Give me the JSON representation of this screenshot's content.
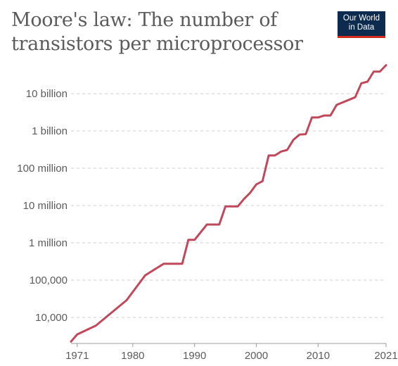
{
  "logo": {
    "line1": "Our World",
    "line2": "in Data"
  },
  "chart_data": {
    "type": "line",
    "title": "Moore's law: The number of transistors per microprocessor",
    "xlabel": "",
    "ylabel": "",
    "y_scale": "log",
    "xlim": [
      1970,
      2021
    ],
    "ylim": [
      2000,
      65000000000
    ],
    "grid": "horizontal-dashed",
    "x_ticks": [
      {
        "value": 1971,
        "label": "1971"
      },
      {
        "value": 1980,
        "label": "1980"
      },
      {
        "value": 1990,
        "label": "1990"
      },
      {
        "value": 2000,
        "label": "2000"
      },
      {
        "value": 2010,
        "label": "2010"
      },
      {
        "value": 2021,
        "label": "2021"
      }
    ],
    "y_ticks": [
      {
        "value": 10000,
        "label": "10,000"
      },
      {
        "value": 100000,
        "label": "100,000"
      },
      {
        "value": 1000000,
        "label": "1 million"
      },
      {
        "value": 10000000,
        "label": "10 million"
      },
      {
        "value": 100000000,
        "label": "100 million"
      },
      {
        "value": 1000000000,
        "label": "1 billion"
      },
      {
        "value": 10000000000,
        "label": "10 billion"
      }
    ],
    "series": [
      {
        "color": "#c0485a",
        "points": [
          [
            1970,
            2250
          ],
          [
            1971,
            3500
          ],
          [
            1974,
            6000
          ],
          [
            1979,
            29000
          ],
          [
            1982,
            134000
          ],
          [
            1985,
            275000
          ],
          [
            1988,
            275000
          ],
          [
            1989,
            1200000
          ],
          [
            1990,
            1200000
          ],
          [
            1992,
            3100000
          ],
          [
            1994,
            3100000
          ],
          [
            1995,
            9500000
          ],
          [
            1997,
            9500000
          ],
          [
            1998,
            15000000
          ],
          [
            1999,
            22000000
          ],
          [
            2000,
            37000000
          ],
          [
            2001,
            45000000
          ],
          [
            2002,
            220000000
          ],
          [
            2003,
            220000000
          ],
          [
            2004,
            280000000
          ],
          [
            2005,
            310000000
          ],
          [
            2006,
            580000000
          ],
          [
            2007,
            800000000
          ],
          [
            2008,
            820000000
          ],
          [
            2009,
            2300000000
          ],
          [
            2010,
            2300000000
          ],
          [
            2011,
            2600000000
          ],
          [
            2012,
            2600000000
          ],
          [
            2013,
            5000000000
          ],
          [
            2016,
            8000000000
          ],
          [
            2017,
            19000000000
          ],
          [
            2018,
            21000000000
          ],
          [
            2019,
            39000000000
          ],
          [
            2020,
            39000000000
          ],
          [
            2021,
            58000000000
          ]
        ]
      }
    ]
  }
}
